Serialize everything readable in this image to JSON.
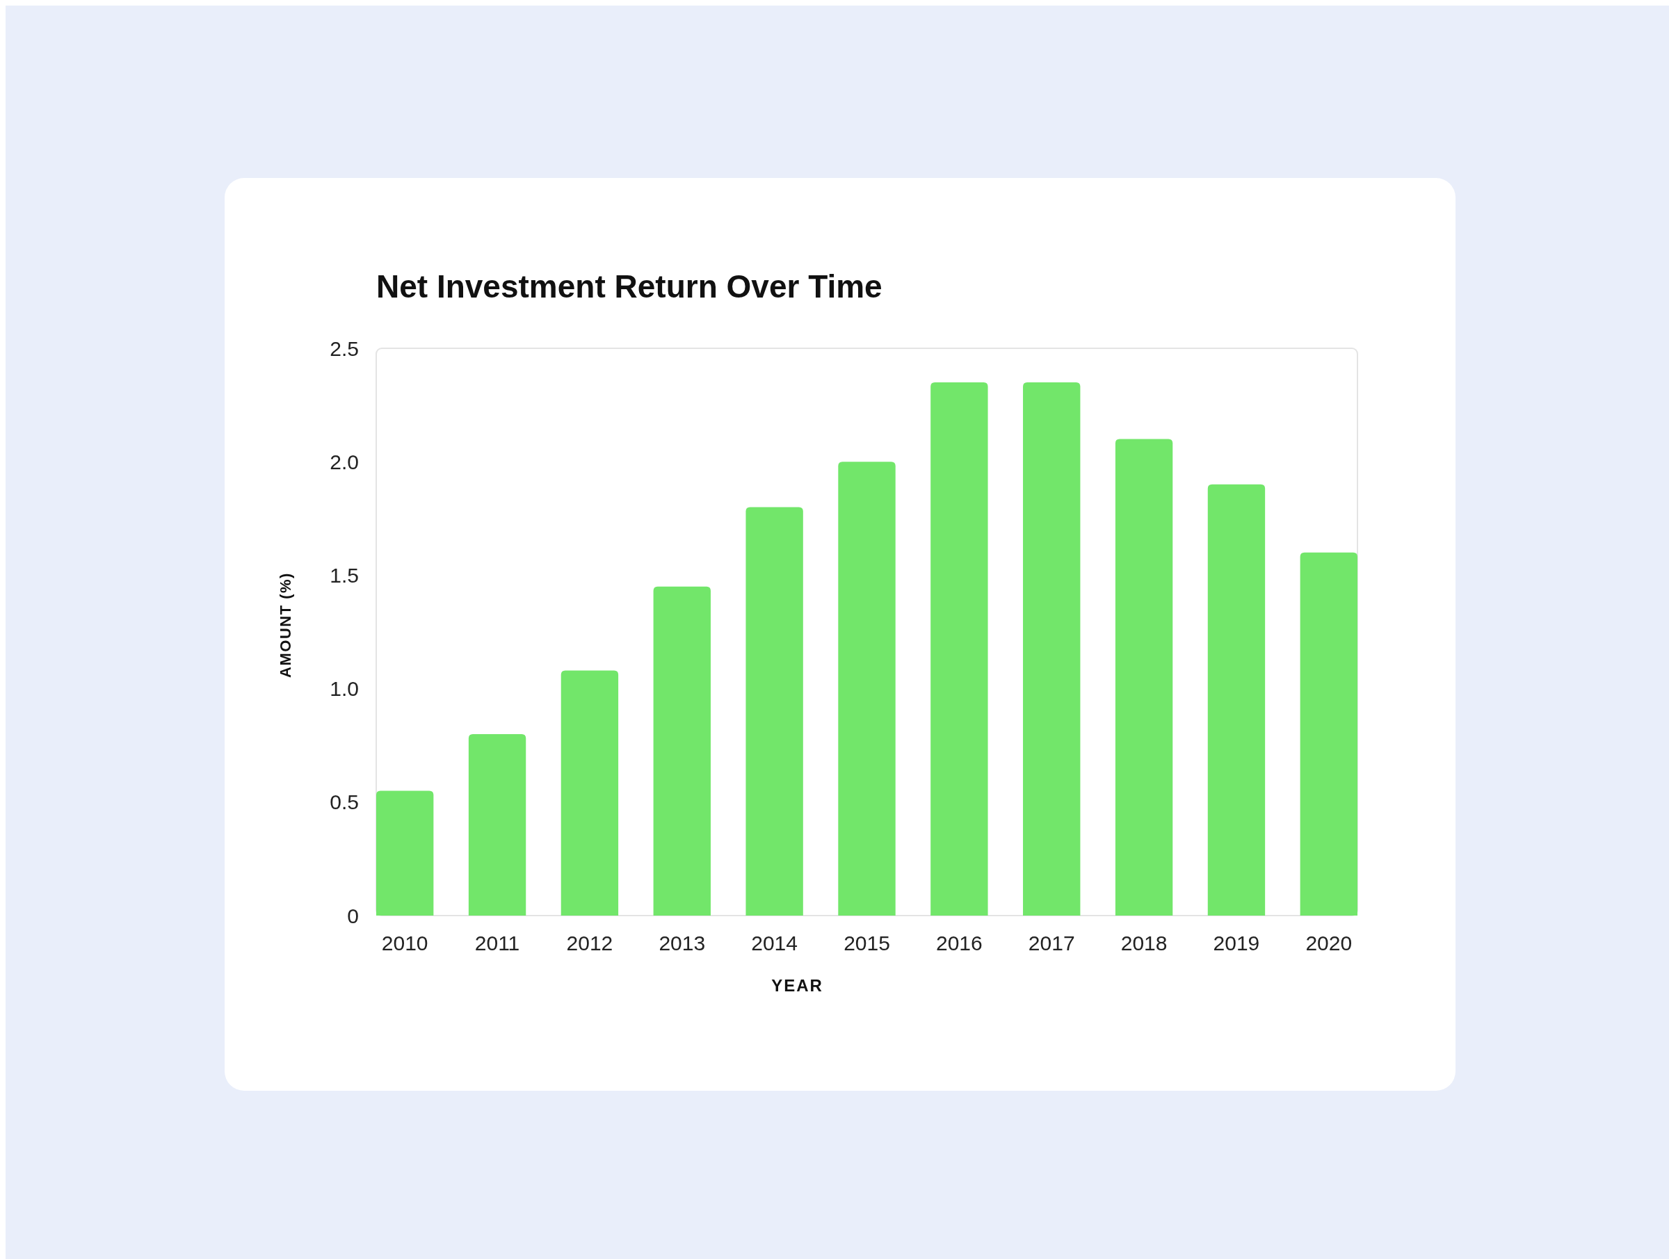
{
  "chart_data": {
    "type": "bar",
    "title": "Net Investment Return Over Time",
    "xlabel": "YEAR",
    "ylabel": "AMOUNT (%)",
    "categories": [
      "2010",
      "2011",
      "2012",
      "2013",
      "2014",
      "2015",
      "2016",
      "2017",
      "2018",
      "2019",
      "2020"
    ],
    "values": [
      0.55,
      0.8,
      1.08,
      1.45,
      1.8,
      2.0,
      2.35,
      2.35,
      2.1,
      1.9,
      1.6
    ],
    "color": "#72e66a",
    "ylim": [
      0,
      2.5
    ],
    "yticks": [
      0,
      {
        "value": 0.5,
        "label": "0.5"
      },
      {
        "value": 1,
        "label": "1.0"
      },
      {
        "value": 1.5,
        "label": "1.5"
      },
      {
        "value": 2,
        "label": "2.0"
      },
      2.5
    ],
    "grid": false
  }
}
